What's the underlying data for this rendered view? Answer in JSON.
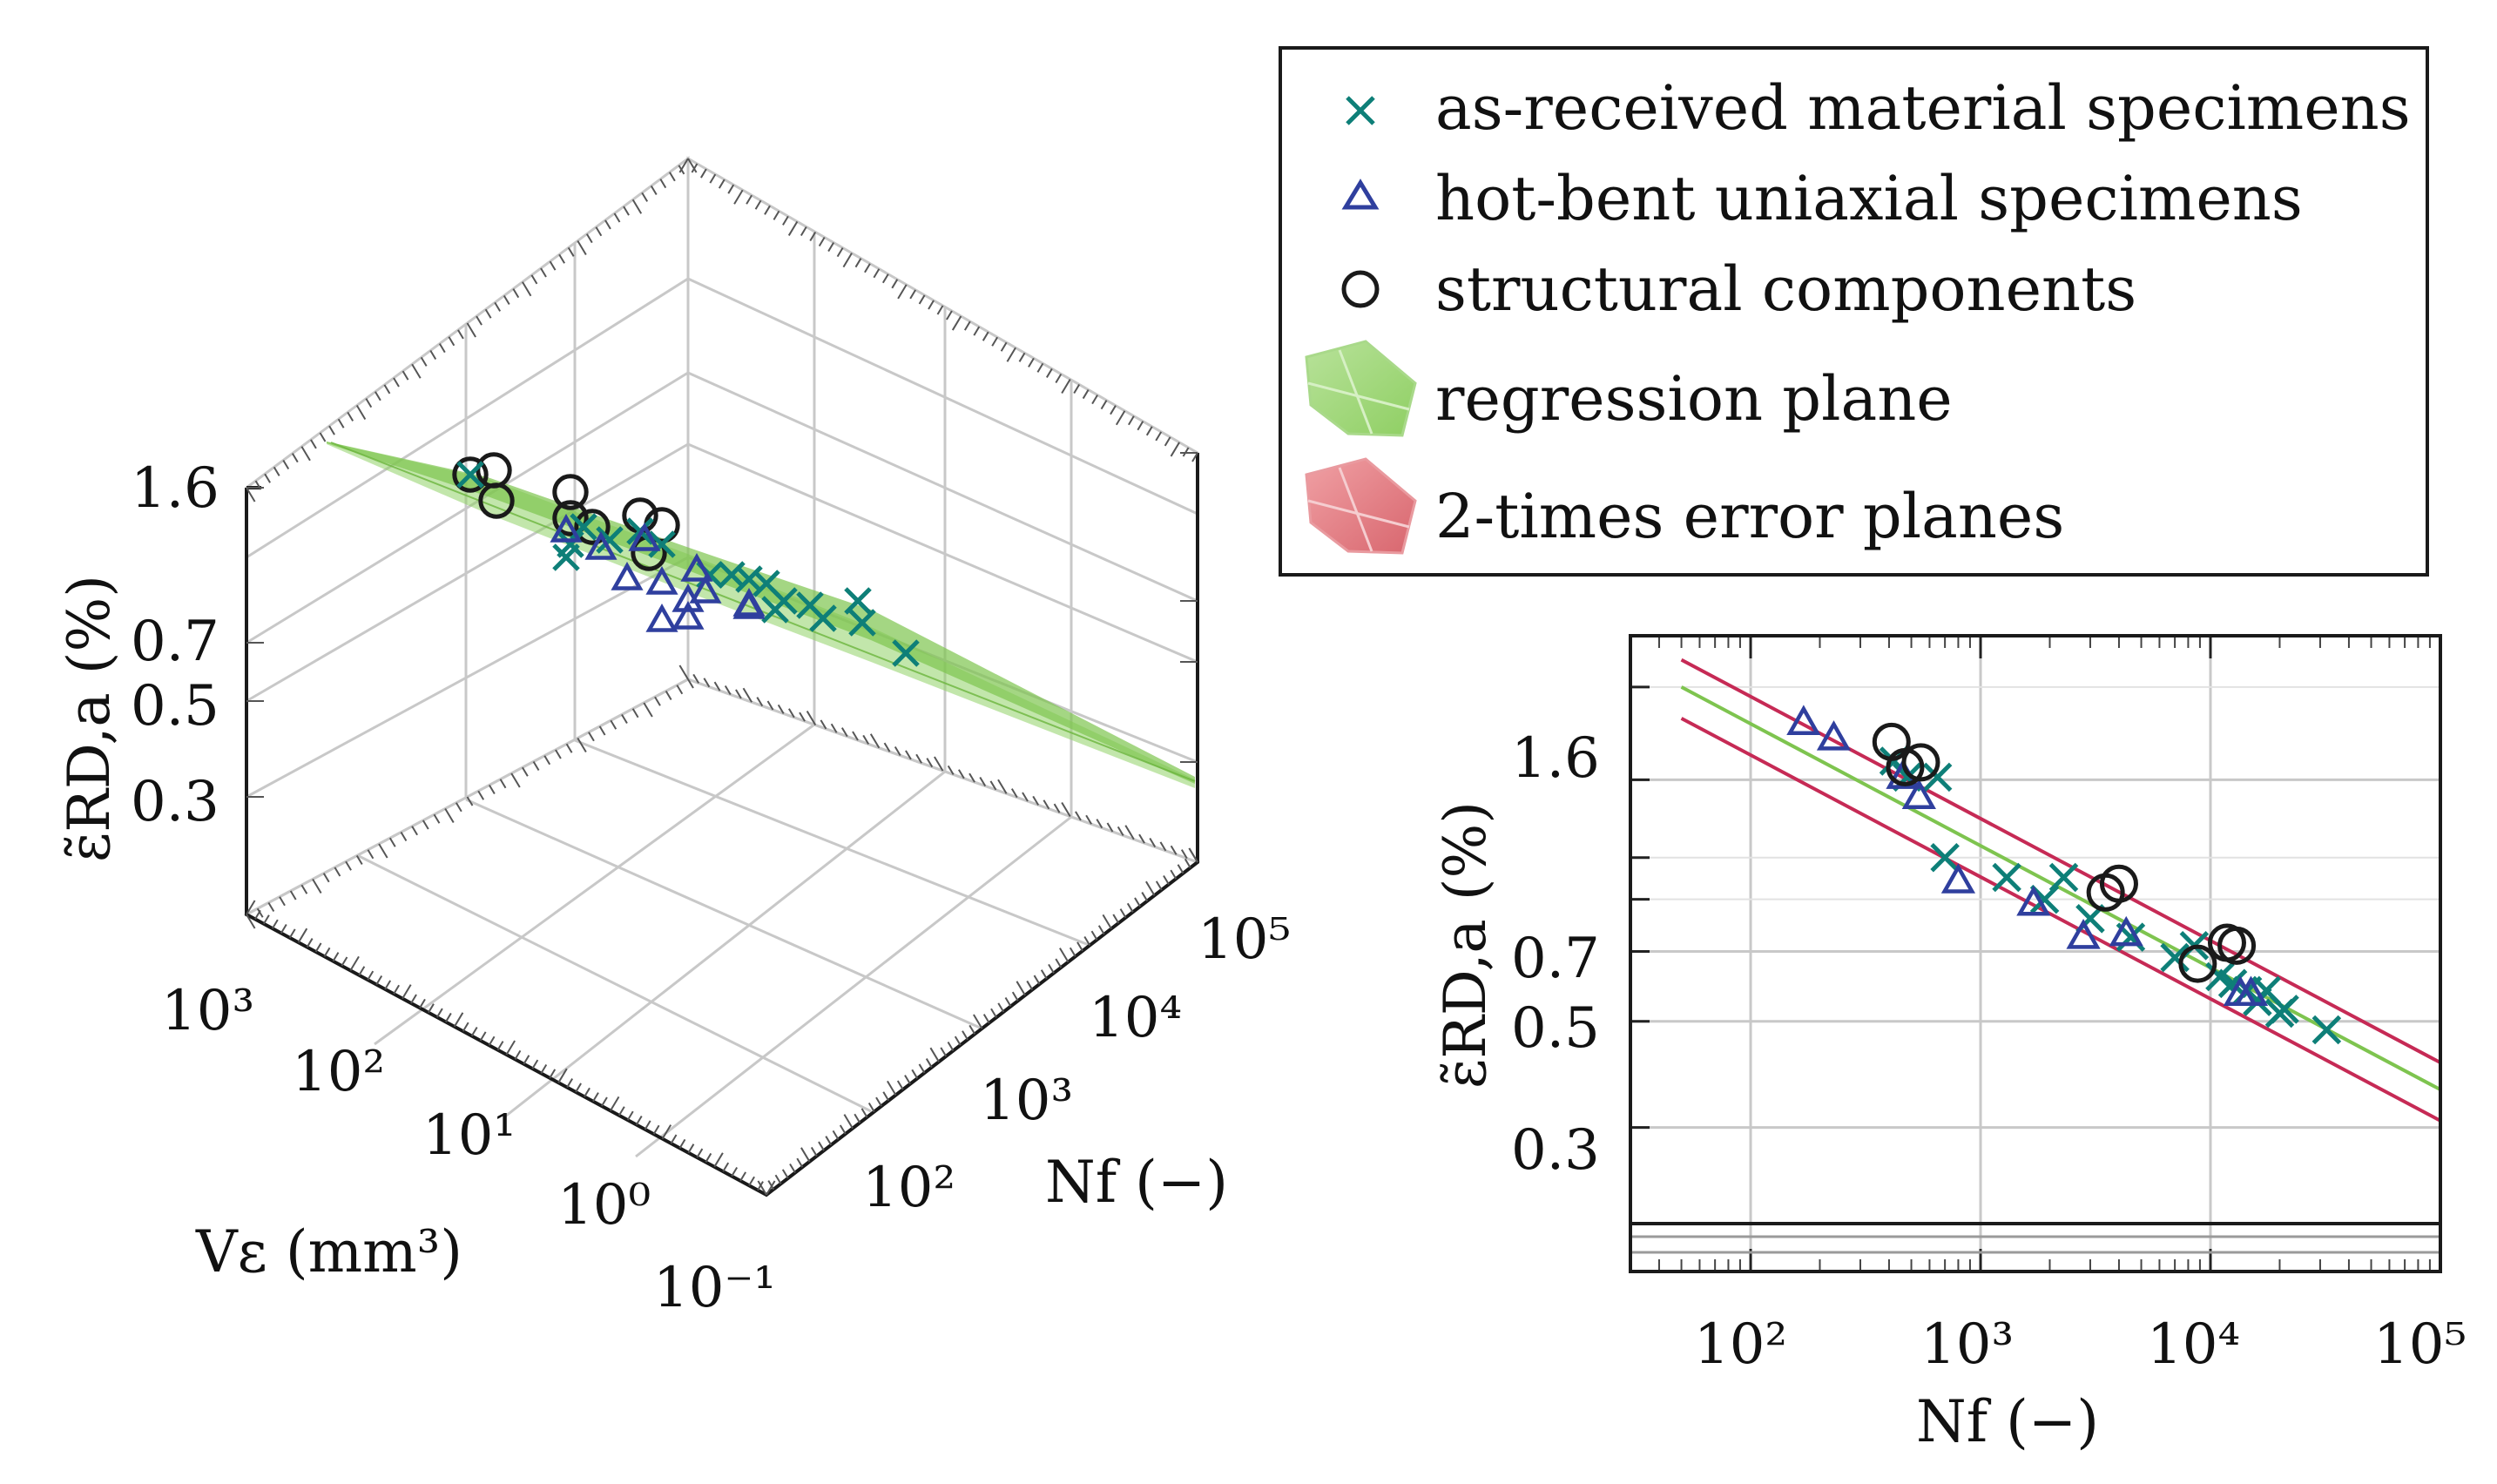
{
  "colors": {
    "cross": "#0e7f78",
    "triangle": "#2f3f9e",
    "circle": "#1a1a1a",
    "regression": "#7ec44f",
    "error": "#c62a55"
  },
  "legend": {
    "items": [
      {
        "label": "as-received material specimens",
        "marker": "cross"
      },
      {
        "label": "hot-bent uniaxial specimens",
        "marker": "triangle"
      },
      {
        "label": "structural components",
        "marker": "circle"
      },
      {
        "label": "regression plane",
        "marker": "green-patch"
      },
      {
        "label": "2-times error planes",
        "marker": "red-patch"
      }
    ]
  },
  "chart_data": [
    {
      "type": "scatter3d",
      "title": "",
      "zlabel": "ε̃RD,a (%)",
      "xlabel": "Vε (mm³)",
      "ylabel": "Nf (−)",
      "z_ticks": [
        "1.6",
        "0.7",
        "0.5",
        "0.3"
      ],
      "v_ticks": [
        "10³",
        "10²",
        "10¹",
        "10⁰",
        "10⁻¹"
      ],
      "n_ticks": [
        "10²",
        "10³",
        "10⁴",
        "10⁵"
      ],
      "surfaces": [
        "regression plane",
        "2-times error planes"
      ]
    },
    {
      "type": "scatter",
      "xscale": "log",
      "yscale": "log",
      "xlabel": "Nf (−)",
      "ylabel": "ε̃RD,a (%)",
      "xlim": [
        30,
        100000
      ],
      "ylim": [
        0.15,
        3.2
      ],
      "x_ticks": [
        "10²",
        "10³",
        "10⁴",
        "10⁵"
      ],
      "y_ticks": [
        "1.6",
        "0.7",
        "0.5",
        "0.3"
      ],
      "lines": [
        {
          "name": "regression",
          "x": [
            50,
            100000
          ],
          "y": [
            2.5,
            0.36
          ]
        },
        {
          "name": "upper error",
          "x": [
            50,
            100000
          ],
          "y": [
            2.85,
            0.41
          ]
        },
        {
          "name": "lower error",
          "x": [
            50,
            100000
          ],
          "y": [
            2.15,
            0.31
          ]
        }
      ],
      "series": [
        {
          "name": "as-received material specimens",
          "marker": "cross",
          "x": [
            420,
            480,
            650,
            700,
            1300,
            1900,
            2300,
            3000,
            4500,
            7000,
            8500,
            11000,
            12500,
            14500,
            16000,
            17500,
            20000,
            21000,
            32000
          ],
          "y": [
            1.75,
            1.62,
            1.62,
            1.1,
            1.0,
            0.9,
            1.0,
            0.82,
            0.75,
            0.68,
            0.72,
            0.62,
            0.6,
            0.58,
            0.55,
            0.58,
            0.52,
            0.53,
            0.48
          ]
        },
        {
          "name": "hot-bent uniaxial specimens",
          "marker": "triangle",
          "x": [
            170,
            230,
            460,
            540,
            800,
            1700,
            2800,
            4300,
            13500,
            15000
          ],
          "y": [
            2.1,
            1.95,
            1.62,
            1.47,
            0.98,
            0.88,
            0.75,
            0.76,
            0.57,
            0.57
          ]
        },
        {
          "name": "structural components",
          "marker": "circle",
          "x": [
            410,
            470,
            550,
            3500,
            4000,
            8800,
            11800,
            13000
          ],
          "y": [
            1.92,
            1.7,
            1.74,
            0.93,
            0.97,
            0.66,
            0.73,
            0.72
          ]
        }
      ]
    }
  ]
}
